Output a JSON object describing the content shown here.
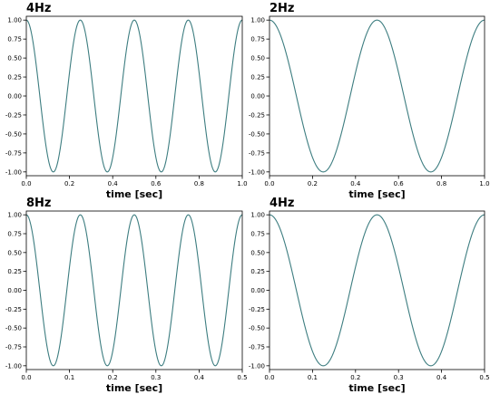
{
  "colors": {
    "line": "#3d7d80"
  },
  "chart_data": [
    {
      "type": "line",
      "title": "4Hz",
      "xlabel": "time [sec]",
      "ylabel": "",
      "xlim": [
        0,
        1.0
      ],
      "ylim": [
        -1.05,
        1.05
      ],
      "xticks": [
        "0.0",
        "0.2",
        "0.4",
        "0.6",
        "0.8",
        "1.0"
      ],
      "yticks": [
        "1.00",
        "0.75",
        "0.50",
        "0.25",
        "0.00",
        "-0.25",
        "-0.50",
        "-0.75",
        "-1.00"
      ],
      "grid": false,
      "series": [
        {
          "function": "cos",
          "frequency_hz": 4,
          "amplitude": 1.0,
          "x_start": 0,
          "x_end": 1.0
        }
      ]
    },
    {
      "type": "line",
      "title": "2Hz",
      "xlabel": "time [sec]",
      "ylabel": "",
      "xlim": [
        0,
        1.0
      ],
      "ylim": [
        -1.05,
        1.05
      ],
      "xticks": [
        "0.0",
        "0.2",
        "0.4",
        "0.6",
        "0.8",
        "1.0"
      ],
      "yticks": [
        "1.00",
        "0.75",
        "0.50",
        "0.25",
        "0.00",
        "-0.25",
        "-0.50",
        "-0.75",
        "-1.00"
      ],
      "grid": false,
      "series": [
        {
          "function": "cos",
          "frequency_hz": 2,
          "amplitude": 1.0,
          "x_start": 0,
          "x_end": 1.0
        }
      ]
    },
    {
      "type": "line",
      "title": "8Hz",
      "xlabel": "time [sec]",
      "ylabel": "",
      "xlim": [
        0,
        0.5
      ],
      "ylim": [
        -1.05,
        1.05
      ],
      "xticks": [
        "0.0",
        "0.1",
        "0.2",
        "0.3",
        "0.4",
        "0.5"
      ],
      "yticks": [
        "1.00",
        "0.75",
        "0.50",
        "0.25",
        "0.00",
        "-0.25",
        "-0.50",
        "-0.75",
        "-1.00"
      ],
      "grid": false,
      "series": [
        {
          "function": "cos",
          "frequency_hz": 8,
          "amplitude": 1.0,
          "x_start": 0,
          "x_end": 0.5
        }
      ]
    },
    {
      "type": "line",
      "title": "4Hz",
      "xlabel": "time [sec]",
      "ylabel": "",
      "xlim": [
        0,
        0.5
      ],
      "ylim": [
        -1.05,
        1.05
      ],
      "xticks": [
        "0.0",
        "0.1",
        "0.2",
        "0.3",
        "0.4",
        "0.5"
      ],
      "yticks": [
        "1.00",
        "0.75",
        "0.50",
        "0.25",
        "0.00",
        "-0.25",
        "-0.50",
        "-0.75",
        "-1.00"
      ],
      "grid": false,
      "series": [
        {
          "function": "cos",
          "frequency_hz": 4,
          "amplitude": 1.0,
          "x_start": 0,
          "x_end": 0.5
        }
      ]
    }
  ]
}
